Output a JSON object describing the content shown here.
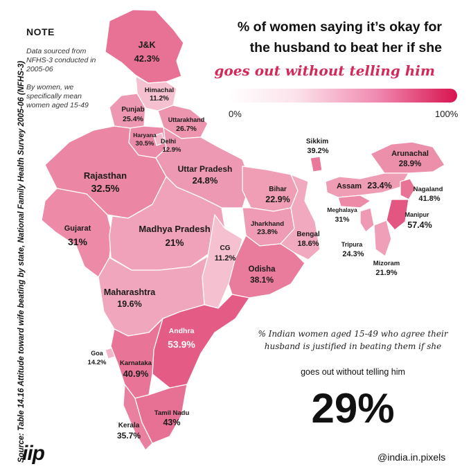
{
  "source": "Source:  Table 14.16 Attitude toward wife beating by state, National Family Health Survey 2005-06 (NFHS-3)",
  "note": {
    "title": "NOTE",
    "line1": "Data sourced from NFHS-3 conducted in 2005-06",
    "line2": "By women, we specifically mean women aged 15-49"
  },
  "title": {
    "line1": "% of women saying it’s okay for",
    "line2": "the husband to beat her if she",
    "highlight": "goes out without telling him"
  },
  "scale": {
    "min_label": "0%",
    "max_label": "100%",
    "min_color": "#ffffff",
    "max_color": "#d8134f"
  },
  "states": [
    {
      "id": "jk",
      "name": "J&K",
      "value": "42.3%",
      "pct": 42.3
    },
    {
      "id": "himachal",
      "name": "Himachal",
      "value": "11.2%",
      "pct": 11.2
    },
    {
      "id": "punjab",
      "name": "Punjab",
      "value": "25.4%",
      "pct": 25.4
    },
    {
      "id": "uttarakhand",
      "name": "Uttarakhand",
      "value": "26.7%",
      "pct": 26.7
    },
    {
      "id": "haryana",
      "name": "Haryana",
      "value": "30.5%",
      "pct": 30.5
    },
    {
      "id": "delhi",
      "name": "Delhi",
      "value": "12.9%",
      "pct": 12.9
    },
    {
      "id": "rajasthan",
      "name": "Rajasthan",
      "value": "32.5%",
      "pct": 32.5
    },
    {
      "id": "uttar-pradesh",
      "name": "Uttar Pradesh",
      "value": "24.8%",
      "pct": 24.8
    },
    {
      "id": "gujarat",
      "name": "Gujarat",
      "value": "31%",
      "pct": 31
    },
    {
      "id": "madhya-pradesh",
      "name": "Madhya Pradesh",
      "value": "21%",
      "pct": 21
    },
    {
      "id": "bihar",
      "name": "Bihar",
      "value": "22.9%",
      "pct": 22.9
    },
    {
      "id": "jharkhand",
      "name": "Jharkhand",
      "value": "23.8%",
      "pct": 23.8
    },
    {
      "id": "bengal",
      "name": "Bengal",
      "value": "18.6%",
      "pct": 18.6
    },
    {
      "id": "cg",
      "name": "CG",
      "value": "11.2%",
      "pct": 11.2
    },
    {
      "id": "odisha",
      "name": "Odisha",
      "value": "38.1%",
      "pct": 38.1
    },
    {
      "id": "maharashtra",
      "name": "Maharashtra",
      "value": "19.6%",
      "pct": 19.6
    },
    {
      "id": "andhra",
      "name": "Andhra",
      "value": "53.9%",
      "pct": 53.9
    },
    {
      "id": "goa",
      "name": "Goa",
      "value": "14.2%",
      "pct": 14.2
    },
    {
      "id": "karnataka",
      "name": "Karnataka",
      "value": "40.9%",
      "pct": 40.9
    },
    {
      "id": "kerala",
      "name": "Kerala",
      "value": "35.7%",
      "pct": 35.7
    },
    {
      "id": "tamil-nadu",
      "name": "Tamil Nadu",
      "value": "43%",
      "pct": 43
    },
    {
      "id": "sikkim",
      "name": "Sikkim",
      "value": "39.2%",
      "pct": 39.2
    },
    {
      "id": "arunachal",
      "name": "Arunachal",
      "value": "28.9%",
      "pct": 28.9
    },
    {
      "id": "assam",
      "name": "Assam",
      "value": "23.4%",
      "pct": 23.4
    },
    {
      "id": "nagaland",
      "name": "Nagaland",
      "value": "41.8%",
      "pct": 41.8
    },
    {
      "id": "meghalaya",
      "name": "Meghalaya",
      "value": "31%",
      "pct": 31
    },
    {
      "id": "manipur",
      "name": "Manipur",
      "value": "57.4%",
      "pct": 57.4
    },
    {
      "id": "tripura",
      "name": "Tripura",
      "value": "24.3%",
      "pct": 24.3
    },
    {
      "id": "mizoram",
      "name": "Mizoram",
      "value": "21.9%",
      "pct": 21.9
    }
  ],
  "national": {
    "description": "% Indian women aged 15-49 who agree their husband is justified in beating them if she",
    "subtitle": "goes out without telling him",
    "value": "29%"
  },
  "logo": "iip",
  "handle": "@india.in.pixels"
}
